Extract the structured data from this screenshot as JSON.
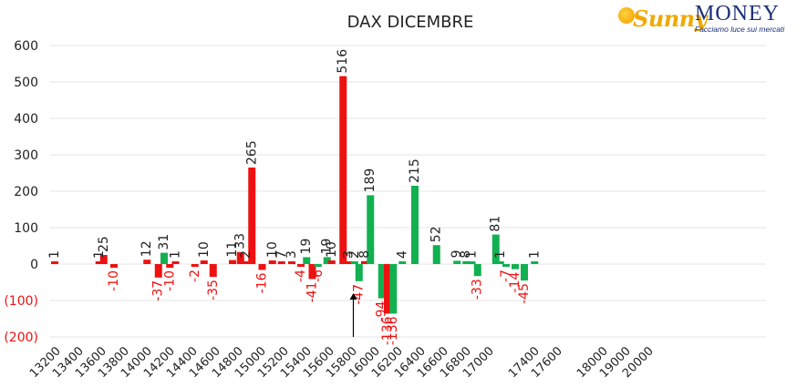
{
  "logo": {
    "brand_first": "Sunny",
    "brand_second": "MONEY",
    "tagline": "Facciamo luce sui mercati"
  },
  "chart_data": {
    "type": "bar",
    "title": "DAX DICEMBRE",
    "xlabel": "",
    "ylabel": "",
    "ylim": [
      -200,
      600
    ],
    "yticks": [
      -200,
      -100,
      0,
      100,
      200,
      300,
      400,
      500,
      600
    ],
    "ytick_labels": [
      "(200)",
      "(100)",
      "0",
      "100",
      "200",
      "300",
      "400",
      "500",
      "600"
    ],
    "xticks": [
      "13200",
      "13400",
      "13600",
      "13800",
      "14000",
      "14200",
      "14400",
      "14600",
      "14800",
      "15000",
      "15200",
      "15400",
      "15600",
      "15800",
      "16000",
      "16200",
      "16400",
      "16600",
      "16800",
      "17000",
      "17400",
      "17600",
      "18000",
      "19000",
      "20000"
    ],
    "xtick_index": [
      0,
      1,
      2,
      3,
      4,
      5,
      6,
      7,
      8,
      9,
      10,
      11,
      12,
      13,
      14,
      15,
      16,
      17,
      18,
      19,
      21,
      22,
      24,
      25,
      26
    ],
    "grid": true,
    "legend": "none",
    "colors": {
      "red": "#ee1111",
      "green": "#11b050",
      "negative_label": "#ee1111",
      "axis_text": "#222222"
    },
    "bars": [
      {
        "pos": -0.2,
        "value": 1,
        "color": "red",
        "label": "1"
      },
      {
        "pos": 1.75,
        "value": 1,
        "color": "red",
        "label": "1"
      },
      {
        "pos": 1.95,
        "value": 25,
        "color": "red",
        "label": "25"
      },
      {
        "pos": 2.4,
        "value": -10,
        "color": "red",
        "label": "-10"
      },
      {
        "pos": 3.85,
        "value": 12,
        "color": "red",
        "label": "12"
      },
      {
        "pos": 4.35,
        "value": -37,
        "color": "red",
        "label": "-37"
      },
      {
        "pos": 4.6,
        "value": 31,
        "color": "green",
        "label": "31"
      },
      {
        "pos": 4.85,
        "value": -10,
        "color": "red",
        "label": "-10"
      },
      {
        "pos": 5.1,
        "value": 1,
        "color": "red",
        "label": "1"
      },
      {
        "pos": 5.95,
        "value": -2,
        "color": "red",
        "label": "-2"
      },
      {
        "pos": 6.35,
        "value": 10,
        "color": "red",
        "label": "10"
      },
      {
        "pos": 6.75,
        "value": -35,
        "color": "red",
        "label": "-35"
      },
      {
        "pos": 7.6,
        "value": 11,
        "color": "red",
        "label": "11"
      },
      {
        "pos": 7.95,
        "value": 33,
        "color": "red",
        "label": "33"
      },
      {
        "pos": 8.2,
        "value": 2,
        "color": "red",
        "label": "2"
      },
      {
        "pos": 8.45,
        "value": 265,
        "color": "red",
        "label": "265"
      },
      {
        "pos": 8.9,
        "value": -16,
        "color": "red",
        "label": "-16"
      },
      {
        "pos": 9.35,
        "value": 10,
        "color": "red",
        "label": "10"
      },
      {
        "pos": 9.75,
        "value": 7,
        "color": "red",
        "label": "7"
      },
      {
        "pos": 10.2,
        "value": 3,
        "color": "red",
        "label": "3"
      },
      {
        "pos": 10.6,
        "value": -4,
        "color": "red",
        "label": "-4"
      },
      {
        "pos": 10.85,
        "value": 19,
        "color": "green",
        "label": "19"
      },
      {
        "pos": 11.1,
        "value": -41,
        "color": "red",
        "label": "-41"
      },
      {
        "pos": 11.35,
        "value": -6,
        "color": "green",
        "label": "-6"
      },
      {
        "pos": 11.75,
        "value": 19,
        "color": "green",
        "label": "19"
      },
      {
        "pos": 11.95,
        "value": 10,
        "color": "red",
        "label": "10"
      },
      {
        "pos": 12.45,
        "value": 516,
        "color": "red",
        "label": "516"
      },
      {
        "pos": 12.7,
        "value": 3,
        "color": "red",
        "label": "3"
      },
      {
        "pos": 12.95,
        "value": 2,
        "color": "green",
        "label": "2"
      },
      {
        "pos": 13.15,
        "value": -47,
        "color": "green",
        "label": "-47"
      },
      {
        "pos": 13.4,
        "value": 8,
        "color": "red",
        "label": "8"
      },
      {
        "pos": 13.65,
        "value": 189,
        "color": "green",
        "label": "189"
      },
      {
        "pos": 14.15,
        "value": -94,
        "color": "green",
        "label": "-94"
      },
      {
        "pos": 14.4,
        "value": -136,
        "color": "red",
        "label": "-136"
      },
      {
        "pos": 14.65,
        "value": -136,
        "color": "green",
        "label": "-136"
      },
      {
        "pos": 15.05,
        "value": 4,
        "color": "green",
        "label": "4"
      },
      {
        "pos": 15.6,
        "value": 215,
        "color": "green",
        "label": "215"
      },
      {
        "pos": 16.55,
        "value": 52,
        "color": "green",
        "label": "52"
      },
      {
        "pos": 17.45,
        "value": 9,
        "color": "green",
        "label": "9"
      },
      {
        "pos": 17.85,
        "value": 8,
        "color": "green",
        "label": "8"
      },
      {
        "pos": 18.1,
        "value": 1,
        "color": "green",
        "label": "1"
      },
      {
        "pos": 18.35,
        "value": -33,
        "color": "green",
        "label": "-33"
      },
      {
        "pos": 19.15,
        "value": 81,
        "color": "green",
        "label": "81"
      },
      {
        "pos": 19.35,
        "value": 1,
        "color": "green",
        "label": "1"
      },
      {
        "pos": 19.6,
        "value": -7,
        "color": "green",
        "label": "-7"
      },
      {
        "pos": 20.0,
        "value": -14,
        "color": "green",
        "label": "-14"
      },
      {
        "pos": 20.4,
        "value": -45,
        "color": "green",
        "label": "-45"
      },
      {
        "pos": 20.85,
        "value": 1,
        "color": "green",
        "label": "1"
      }
    ],
    "annotation": {
      "type": "arrow",
      "x_pos": 12.9,
      "y_from": -200,
      "y_to": -80
    }
  }
}
